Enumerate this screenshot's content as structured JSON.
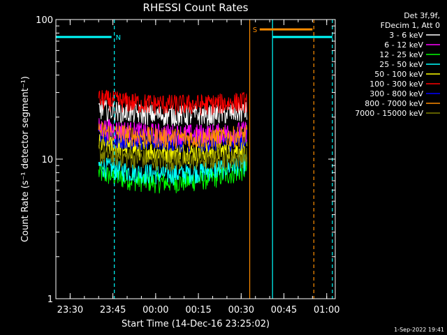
{
  "chart_data": {
    "type": "line",
    "title": "RHESSI Count Rates",
    "xlabel": "Start Time (14-Dec-16 23:25:02)",
    "ylabel": "Count Rate (s⁻¹ detector segment⁻¹)",
    "ylim": [
      1,
      100
    ],
    "yscale": "log",
    "x_range_minutes_after_23_25": [
      0,
      98
    ],
    "x_ticks": [
      "23:30",
      "23:45",
      "00:00",
      "00:15",
      "00:30",
      "00:45",
      "01:00"
    ],
    "x_tick_minutes": [
      5,
      20,
      35,
      50,
      65,
      80,
      95
    ],
    "y_ticks": [
      "1",
      "10",
      "100"
    ],
    "legend_header": [
      "Det 3f,9f,",
      "FDecim 1, Att 0"
    ],
    "legend_position": "top-right",
    "series": [
      {
        "name": "3 - 6 keV",
        "color": "#ffffff",
        "start_level": 23,
        "mid_level": 19,
        "end_level": 22
      },
      {
        "name": "6 - 12 keV",
        "color": "#ff00ff",
        "start_level": 17,
        "mid_level": 14,
        "end_level": 16
      },
      {
        "name": "12 - 25 keV",
        "color": "#00ff00",
        "start_level": 8,
        "mid_level": 5.5,
        "end_level": 8.5
      },
      {
        "name": "25 - 50 keV",
        "color": "#00ffff",
        "start_level": 9,
        "mid_level": 6.5,
        "end_level": 9.5
      },
      {
        "name": "50 - 100 keV",
        "color": "#ffff00",
        "start_level": 13,
        "mid_level": 10,
        "end_level": 12
      },
      {
        "name": "100 - 300 keV",
        "color": "#ff0000",
        "start_level": 27,
        "mid_level": 23,
        "end_level": 26
      },
      {
        "name": "300 - 800 keV",
        "color": "#0000ff",
        "start_level": 15,
        "mid_level": 12.5,
        "end_level": 14
      },
      {
        "name": "800 - 7000 keV",
        "color": "#ff8c00",
        "start_level": 16,
        "mid_level": 13,
        "end_level": 15
      },
      {
        "name": "7000 - 15000 keV",
        "color": "#808000",
        "start_level": 11,
        "mid_level": 9,
        "end_level": 10.5
      }
    ],
    "data_interval_minutes": [
      15,
      67
    ],
    "annotations": [
      {
        "label": "N",
        "color": "#00ffff",
        "bar_minutes": [
          0,
          19.5
        ],
        "level": 75
      },
      {
        "label": "S",
        "color": "#ff8c00",
        "bar_minutes": [
          71.5,
          90
        ],
        "level": 85
      }
    ],
    "markers": [
      {
        "color": "#00ffff",
        "minute": 20.5,
        "style": "dashed"
      },
      {
        "color": "#ff8c00",
        "minute": 68,
        "style": "solid"
      },
      {
        "color": "#00ffff",
        "minute": 76,
        "style": "solid"
      },
      {
        "color": "#ff8c00",
        "minute": 90.5,
        "style": "dashed"
      },
      {
        "color": "#00ffff",
        "minute": 97,
        "style": "dashed"
      }
    ],
    "cyan_bars": [
      {
        "minutes": [
          0,
          19.5
        ],
        "level": 75
      },
      {
        "minutes": [
          76,
          97
        ],
        "level": 75
      }
    ],
    "footer_date": "1-Sep-2022 19:41"
  }
}
